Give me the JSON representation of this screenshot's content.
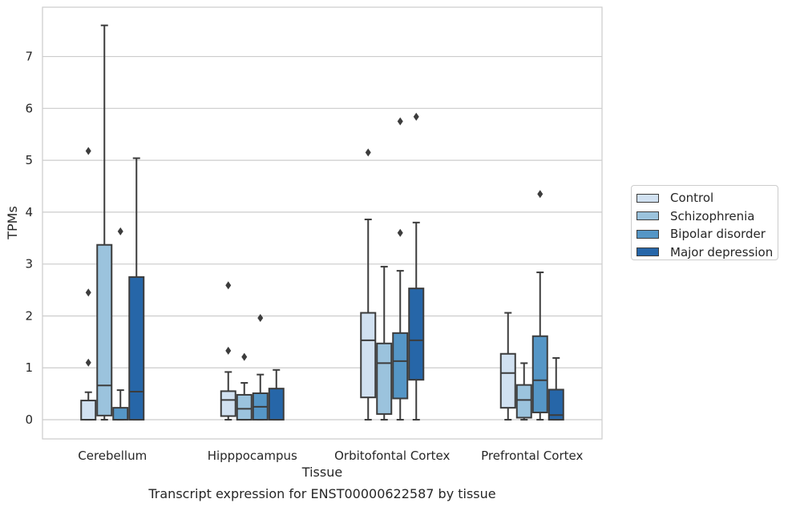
{
  "caption": "Transcript expression for ENST00000622587 by tissue",
  "chart_data": {
    "type": "box",
    "xlabel": "Tissue",
    "ylabel": "TPMs",
    "ylim": [
      -0.37,
      7.95
    ],
    "yticks": [
      0,
      1,
      2,
      3,
      4,
      5,
      6,
      7
    ],
    "categories": [
      "Cerebellum",
      "Hipppocampus",
      "Orbitofontal Cortex",
      "Prefrontal Cortex"
    ],
    "grid": "horizontal",
    "legend_position": "right",
    "series": [
      {
        "name": "Control",
        "color": "#d1e1f1",
        "boxes": [
          {
            "whislo": 0.0,
            "q1": 0.0,
            "med": 0.0,
            "q3": 0.37,
            "whishi": 0.53,
            "fliers": [
              1.1,
              2.45,
              5.18
            ]
          },
          {
            "whislo": 0.0,
            "q1": 0.07,
            "med": 0.38,
            "q3": 0.55,
            "whishi": 0.92,
            "fliers": [
              1.33,
              2.59
            ]
          },
          {
            "whislo": 0.0,
            "q1": 0.43,
            "med": 1.53,
            "q3": 2.06,
            "whishi": 3.86,
            "fliers": [
              5.15
            ]
          },
          {
            "whislo": 0.0,
            "q1": 0.23,
            "med": 0.9,
            "q3": 1.27,
            "whishi": 2.06,
            "fliers": []
          }
        ]
      },
      {
        "name": "Schizophrenia",
        "color": "#9bc3dd",
        "boxes": [
          {
            "whislo": 0.0,
            "q1": 0.08,
            "med": 0.66,
            "q3": 3.37,
            "whishi": 7.6,
            "fliers": []
          },
          {
            "whislo": 0.0,
            "q1": 0.0,
            "med": 0.21,
            "q3": 0.48,
            "whishi": 0.71,
            "fliers": [
              1.21
            ]
          },
          {
            "whislo": 0.0,
            "q1": 0.11,
            "med": 1.09,
            "q3": 1.47,
            "whishi": 2.95,
            "fliers": []
          },
          {
            "whislo": 0.0,
            "q1": 0.04,
            "med": 0.38,
            "q3": 0.67,
            "whishi": 1.09,
            "fliers": []
          }
        ]
      },
      {
        "name": "Bipolar disorder",
        "color": "#5596c6",
        "boxes": [
          {
            "whislo": 0.0,
            "q1": 0.0,
            "med": 0.0,
            "q3": 0.23,
            "whishi": 0.57,
            "fliers": [
              3.63
            ]
          },
          {
            "whislo": 0.0,
            "q1": 0.0,
            "med": 0.25,
            "q3": 0.51,
            "whishi": 0.87,
            "fliers": [
              1.96
            ]
          },
          {
            "whislo": 0.0,
            "q1": 0.41,
            "med": 1.13,
            "q3": 1.67,
            "whishi": 2.87,
            "fliers": [
              3.6,
              5.75
            ]
          },
          {
            "whislo": 0.0,
            "q1": 0.14,
            "med": 0.76,
            "q3": 1.61,
            "whishi": 2.84,
            "fliers": [
              4.35
            ]
          }
        ]
      },
      {
        "name": "Major depression",
        "color": "#2666a8",
        "boxes": [
          {
            "whislo": 0.0,
            "q1": 0.0,
            "med": 0.54,
            "q3": 2.75,
            "whishi": 5.04,
            "fliers": []
          },
          {
            "whislo": 0.0,
            "q1": 0.0,
            "med": 0.0,
            "q3": 0.6,
            "whishi": 0.96,
            "fliers": []
          },
          {
            "whislo": 0.0,
            "q1": 0.77,
            "med": 1.53,
            "q3": 2.53,
            "whishi": 3.8,
            "fliers": [
              5.84
            ]
          },
          {
            "whislo": 0.0,
            "q1": 0.0,
            "med": 0.09,
            "q3": 0.58,
            "whishi": 1.19,
            "fliers": []
          }
        ]
      }
    ]
  }
}
